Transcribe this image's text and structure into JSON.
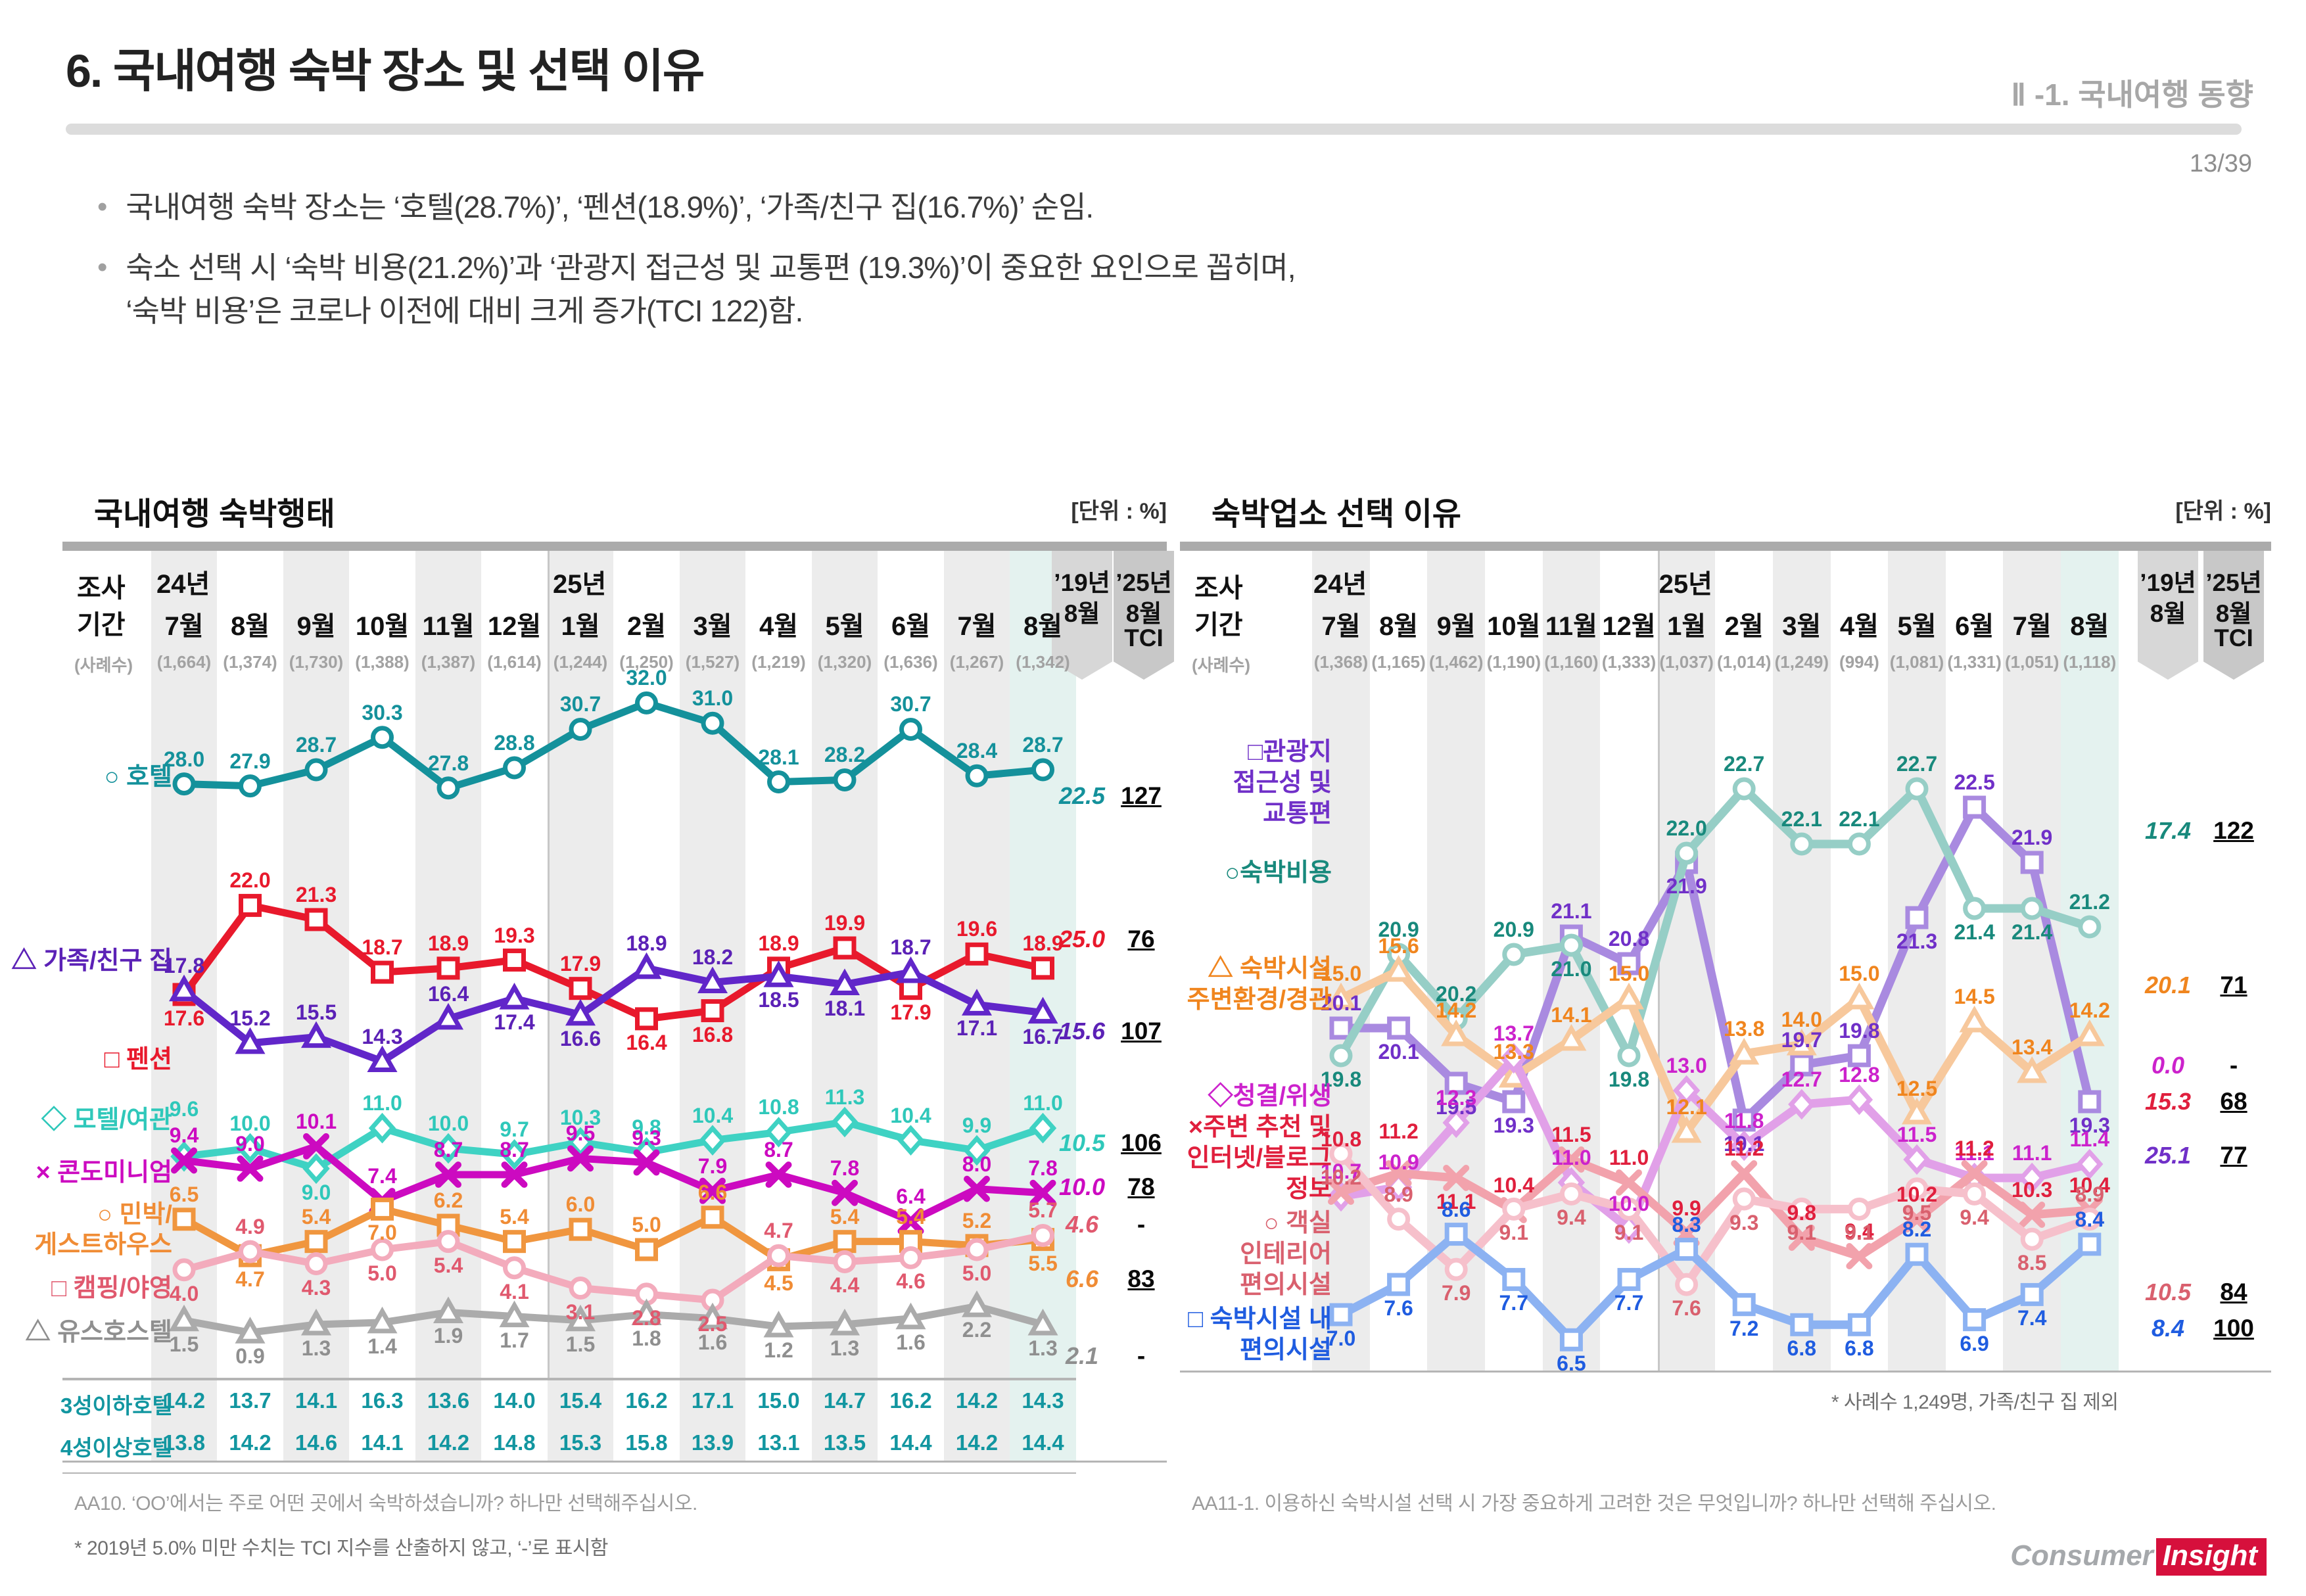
{
  "page": {
    "title": "6. 국내여행 숙박 장소 및 선택 이유",
    "section": "Ⅱ -1. 국내여행 동향",
    "page_no": "13/39",
    "bullets": [
      "국내여행 숙박 장소는 ‘호텔(28.7%)’, ‘펜션(18.9%)’, ‘가족/친구 집(16.7%)’ 순임.",
      "숙소 선택 시 ‘숙박 비용(21.2%)’과 ‘관광지 접근성 및 교통편 (19.3%)’이 중요한 요인으로 꼽히며,\n‘숙박 비용’은 코로나 이전에 대비 크게 증가(TCI 122)함."
    ],
    "logo": {
      "left": "Consumer",
      "right": "Insight"
    }
  },
  "chart_data": [
    {
      "type": "line",
      "title": "국내여행 숙박행태",
      "unit": "[단위 : %]",
      "period_label": [
        "조사",
        "기간"
      ],
      "year_labels": [
        "24년",
        "25년"
      ],
      "months": [
        "7월",
        "8월",
        "9월",
        "10월",
        "11월",
        "12월",
        "1월",
        "2월",
        "3월",
        "4월",
        "5월",
        "6월",
        "7월",
        "8월"
      ],
      "samples_label": "(사례수)",
      "samples": [
        "(1,664)",
        "(1,374)",
        "(1,730)",
        "(1,388)",
        "(1,387)",
        "(1,614)",
        "(1,244)",
        "(1,250)",
        "(1,527)",
        "(1,219)",
        "(1,320)",
        "(1,636)",
        "(1,267)",
        "(1,342)"
      ],
      "col19_lines": [
        "’19년",
        "8월"
      ],
      "colTci_lines": [
        "’25년",
        "8월",
        "TCI"
      ],
      "series": [
        {
          "id": "hotel",
          "name": "호텔",
          "legend_lines": [
            "○ 호텔"
          ],
          "legend_ys": [
            1150
          ],
          "symbol": "circle",
          "color": "#14919b",
          "line_color": "#14919b",
          "band": "L",
          "values": [
            28.0,
            27.9,
            28.7,
            30.3,
            27.8,
            28.8,
            30.7,
            32.0,
            31.0,
            28.1,
            28.2,
            30.7,
            28.4,
            28.7
          ],
          "sides": "aaaaaaaaaaaaaa",
          "v19": "22.5",
          "tci": "127",
          "y19": 1190
        },
        {
          "id": "pension",
          "name": "펜션",
          "legend_lines": [
            "□ 펜션"
          ],
          "legend_ys": [
            1580
          ],
          "symbol": "square",
          "color": "#e8192c",
          "line_color": "#e8192c",
          "band": "L",
          "values": [
            17.6,
            22.0,
            21.3,
            18.7,
            18.9,
            19.3,
            17.9,
            16.4,
            16.8,
            18.9,
            19.9,
            17.9,
            19.6,
            18.9
          ],
          "sides": "baaaaaabbaabaa",
          "v19": "25.0",
          "tci": "76",
          "y19": 1408
        },
        {
          "id": "family",
          "name": "가족/친구 집",
          "legend_lines": [
            "△ 가족/친구 집"
          ],
          "legend_ys": [
            1430
          ],
          "symbol": "triangle",
          "color": "#5b21b6",
          "line_color": "#6126c9",
          "band": "L",
          "values": [
            17.8,
            15.2,
            15.5,
            14.3,
            16.4,
            17.4,
            16.6,
            18.9,
            18.2,
            18.5,
            18.1,
            18.7,
            17.1,
            16.7
          ],
          "sides": "aaaaabbaabbabb",
          "v19": "15.6",
          "tci": "107",
          "y19": 1548
        },
        {
          "id": "motel",
          "name": "모텔/여관",
          "legend_lines": [
            "◇ 모텔/여관"
          ],
          "legend_ys": [
            1672
          ],
          "symbol": "diamond",
          "color": "#2fc8ba",
          "line_color": "#3fd2c3",
          "band": "L",
          "values": [
            9.6,
            10.0,
            9.0,
            11.0,
            10.0,
            9.7,
            10.3,
            9.8,
            10.4,
            10.8,
            11.3,
            10.4,
            9.9,
            11.0
          ],
          "sides": "aabaaaaaaaaaaa",
          "nudge": {
            "0": -34
          },
          "v19": "10.5",
          "tci": "106",
          "y19": 1718
        },
        {
          "id": "condo",
          "name": "콘도미니엄",
          "legend_lines": [
            "× 콘도미니엄"
          ],
          "legend_ys": [
            1752
          ],
          "symbol": "cross",
          "color": "#cc0ac0",
          "line_color": "#cc0ac0",
          "band": "L",
          "values": [
            9.4,
            9.0,
            10.1,
            7.4,
            8.7,
            8.7,
            9.5,
            9.3,
            7.9,
            8.7,
            7.8,
            6.4,
            8.0,
            7.8
          ],
          "sides": "aaaaaaaaaaaaaa",
          "v19": "10.0",
          "tci": "78",
          "y19": 1785
        },
        {
          "id": "minbak",
          "name": "민박/게스트하우스",
          "legend_lines": [
            "○ 민박/",
            "게스트하우스"
          ],
          "legend_ys": [
            1816,
            1862
          ],
          "symbol": "square",
          "color": "#f08c35",
          "line_color": "#f0963f",
          "band": "L",
          "values": [
            6.5,
            4.7,
            5.4,
            7.0,
            6.2,
            5.4,
            6.0,
            5.0,
            6.6,
            4.5,
            5.4,
            5.4,
            5.2,
            5.5
          ],
          "sides": "ababaaaaabaaab",
          "v19": "6.6",
          "tci": "83",
          "y19": 1925
        },
        {
          "id": "camping",
          "name": "캠핑/야영",
          "legend_lines": [
            "□ 캠핑/야영"
          ],
          "legend_ys": [
            1928
          ],
          "symbol": "circle",
          "color": "#e0596e",
          "line_color": "#f3abbc",
          "band": "L",
          "values": [
            4.0,
            4.9,
            4.3,
            5.0,
            5.4,
            4.1,
            3.1,
            2.8,
            2.5,
            4.7,
            4.4,
            4.6,
            5.0,
            5.7
          ],
          "sides": "babbbbbbbabbba",
          "v19": "4.6",
          "tci": "-",
          "y19": 1842
        },
        {
          "id": "youth",
          "name": "유스호스텔",
          "legend_lines": [
            "△ 유스호스텔"
          ],
          "legend_ys": [
            1995
          ],
          "symbol": "triangle",
          "color": "#8f8f8f",
          "line_color": "#ababab",
          "band": "L",
          "values": [
            1.5,
            0.9,
            1.3,
            1.4,
            1.9,
            1.7,
            1.5,
            1.8,
            1.6,
            1.2,
            1.3,
            1.6,
            2.2,
            1.3
          ],
          "sides": "bbbbbbbbbbbbbb",
          "v19": "2.1",
          "tci": "-",
          "y19": 2042
        }
      ],
      "table": {
        "rows": [
          {
            "label": "3성이하호텔",
            "values": [
              "14.2",
              "13.7",
              "14.1",
              "16.3",
              "13.6",
              "14.0",
              "15.4",
              "16.2",
              "17.1",
              "15.0",
              "14.7",
              "16.2",
              "14.2",
              "14.3"
            ]
          },
          {
            "label": "4성이상호텔",
            "values": [
              "13.8",
              "14.2",
              "14.6",
              "14.1",
              "14.2",
              "14.8",
              "15.3",
              "15.8",
              "13.9",
              "13.1",
              "13.5",
              "14.4",
              "14.2",
              "14.4"
            ]
          }
        ],
        "color": "#1296a0"
      },
      "question": "AA10. ‘OO’에서는 주로 어떤 곳에서 숙박하셨습니까? 하나만 선택해주십시오.",
      "footnote": "* 2019년 5.0% 미만 수치는 TCI 지수를 산출하지 않고, ‘-’로 표시함"
    },
    {
      "type": "line",
      "title": "숙박업소 선택 이유",
      "unit": "[단위 : %]",
      "period_label": [
        "조사",
        "기간"
      ],
      "year_labels": [
        "24년",
        "25년"
      ],
      "months": [
        "7월",
        "8월",
        "9월",
        "10월",
        "11월",
        "12월",
        "1월",
        "2월",
        "3월",
        "4월",
        "5월",
        "6월",
        "7월",
        "8월"
      ],
      "samples_label": "(사례수)",
      "samples": [
        "(1,368)",
        "(1,165)",
        "(1,462)",
        "(1,190)",
        "(1,160)",
        "(1,333)",
        "(1,037)",
        "(1,014)",
        "(1,249)",
        "(994)",
        "(1,081)",
        "(1,331)",
        "(1,051)",
        "(1,118)"
      ],
      "col19_lines": [
        "’19년",
        "8월"
      ],
      "colTci_lines": [
        "’25년",
        "8월",
        "TCI"
      ],
      "series": [
        {
          "id": "tourist",
          "name": "관광지 접근성 및 교통편",
          "legend_lines": [
            "□관광지",
            "접근성 및",
            "교통편"
          ],
          "legend_ys": [
            1112,
            1159,
            1206
          ],
          "symbol": "square",
          "color": "#7030c8",
          "line_color": "#a98ae0",
          "band": "A",
          "values": [
            20.1,
            20.1,
            19.5,
            19.3,
            21.1,
            20.8,
            21.9,
            19.1,
            19.7,
            19.8,
            21.3,
            22.5,
            21.9,
            19.3
          ],
          "sides": "abbbaabbaabaab",
          "v19": "25.1",
          "tci": "77",
          "y19": 1737
        },
        {
          "id": "cost",
          "name": "숙박비용",
          "legend_lines": [
            "○숙박비용"
          ],
          "legend_ys": [
            1296
          ],
          "symbol": "circle",
          "color": "#18897c",
          "line_color": "#96cec6",
          "band": "A",
          "values": [
            19.8,
            20.9,
            20.2,
            20.9,
            21.0,
            19.8,
            22.0,
            22.7,
            22.1,
            22.1,
            22.7,
            21.4,
            21.4,
            21.2
          ],
          "sides": "baaabbaaaaabba",
          "v19": "17.4",
          "tci": "122",
          "y19": 1243
        },
        {
          "id": "environ",
          "name": "숙박시설 주변환경/경관",
          "legend_lines": [
            "△ 숙박시설",
            "주변환경/경관"
          ],
          "legend_ys": [
            1442,
            1489
          ],
          "symbol": "triangle",
          "color": "#f0851e",
          "line_color": "#f7c89c",
          "band": "M",
          "values": [
            15.0,
            15.6,
            14.2,
            13.3,
            14.1,
            15.0,
            12.1,
            13.8,
            14.0,
            15.0,
            12.5,
            14.5,
            13.4,
            14.2
          ],
          "sides": "aaaaaaaaaaaaaa",
          "v19": "20.1",
          "tci": "71",
          "y19": 1478
        },
        {
          "id": "clean",
          "name": "청결/위생",
          "legend_lines": [
            "◇청결/위생"
          ],
          "legend_ys": [
            1636
          ],
          "symbol": "diamond",
          "color": "#cc22cc",
          "line_color": "#e1a0e8",
          "band": "M",
          "values": [
            10.7,
            10.9,
            12.3,
            13.7,
            11.0,
            10.0,
            13.0,
            11.8,
            12.7,
            12.8,
            11.5,
            11.1,
            11.1,
            11.4
          ],
          "sides": "aaaaaaaaaaaaaa",
          "v19": "0.0",
          "tci": "-",
          "y19": 1600
        },
        {
          "id": "recommend",
          "name": "주변 추천 및 인터넷/블로그 정보",
          "legend_lines": [
            "×주변 추천 및",
            "인터넷/블로그",
            "정보"
          ],
          "legend_ys": [
            1683,
            1730,
            1777
          ],
          "symbol": "cross",
          "color": "#e01f3d",
          "line_color": "#f2a2ac",
          "band": "M",
          "values": [
            10.8,
            11.2,
            11.1,
            10.4,
            11.5,
            11.0,
            9.9,
            11.2,
            9.8,
            9.4,
            10.2,
            11.2,
            10.3,
            10.4
          ],
          "sides": "aabaaaaaaaaaaa",
          "nudge": {
            "0": -42,
            "1": -26
          },
          "v19": "15.3",
          "tci": "68",
          "y19": 1655
        },
        {
          "id": "interior",
          "name": "객실 인테리어 편의시설",
          "legend_lines": [
            "○ 객실",
            "인테리어",
            "편의시설"
          ],
          "legend_ys": [
            1829,
            1876,
            1923
          ],
          "symbol": "circle",
          "color": "#d9606e",
          "line_color": "#f6c0cb",
          "band": "B",
          "values": [
            10.2,
            8.9,
            7.9,
            9.1,
            9.4,
            9.1,
            7.6,
            9.3,
            9.1,
            9.1,
            9.5,
            9.4,
            8.5,
            8.9
          ],
          "sides": "babbbbbbbbbbba",
          "v19": "10.5",
          "tci": "84",
          "y19": 1945
        },
        {
          "id": "facility",
          "name": "숙박시설 내 편의시설",
          "legend_lines": [
            "□ 숙박시설 내",
            "편의시설"
          ],
          "legend_ys": [
            1975,
            2022
          ],
          "symbol": "square",
          "color": "#1f5ce0",
          "line_color": "#8cb2f2",
          "band": "B",
          "values": [
            7.0,
            7.6,
            8.6,
            7.7,
            6.5,
            7.7,
            8.3,
            7.2,
            6.8,
            6.8,
            8.2,
            6.9,
            7.4,
            8.4
          ],
          "sides": "bbabbbabbbabba",
          "v19": "8.4",
          "tci": "100",
          "y19": 2000
        }
      ],
      "question": "AA11-1. 이용하신 숙박시설 선택 시 가장 중요하게 고려한 것은 무엇입니까? 하나만 선택해 주십시오.",
      "footnote": "* 사례수 1,249명, 가족/친구 집 제외"
    }
  ]
}
